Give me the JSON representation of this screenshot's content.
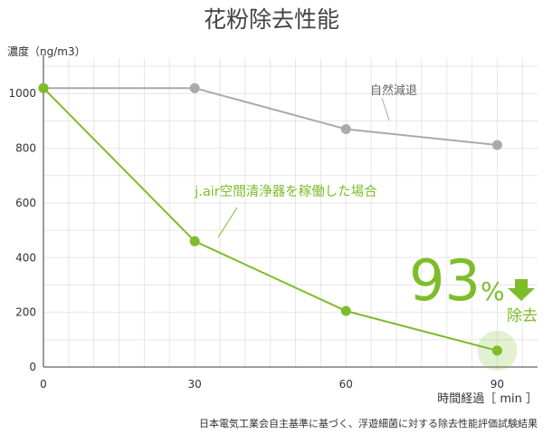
{
  "chart_data": {
    "type": "line",
    "title": "花粉除去性能",
    "ylabel": "濃度（ng/m3）",
    "xlabel": "時間経過［ min ］",
    "x": [
      0,
      30,
      60,
      90
    ],
    "x_tick_labels": [
      "0",
      "30",
      "60",
      "90"
    ],
    "y_tick_labels": [
      "0",
      "200",
      "400",
      "600",
      "800",
      "1000"
    ],
    "xlim": [
      0,
      98
    ],
    "ylim": [
      0,
      1130
    ],
    "grid": true,
    "series": [
      {
        "name": "自然減退",
        "color": "#aaaaaa",
        "values": [
          1020,
          1020,
          870,
          812
        ]
      },
      {
        "name": "j.air空間清浄器を稼働した場合",
        "color": "#7dbd2a",
        "values": [
          1020,
          460,
          205,
          60
        ]
      }
    ],
    "annotation": {
      "value": "93",
      "unit": "%",
      "label": "除去",
      "color": "#7dbd2a"
    },
    "footnote": "日本電気工業会自主基準に基づく、浮遊細菌に対する除去性能評価試験結果"
  }
}
